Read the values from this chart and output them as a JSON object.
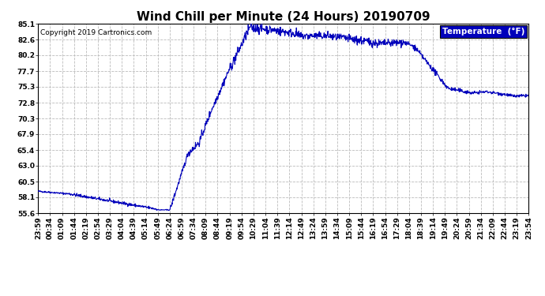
{
  "title": "Wind Chill per Minute (24 Hours) 20190709",
  "copyright": "Copyright 2019 Cartronics.com",
  "legend_label": "Temperature  (°F)",
  "line_color": "#0000BB",
  "background_color": "#ffffff",
  "plot_bg_color": "#ffffff",
  "yticks": [
    55.6,
    58.1,
    60.5,
    63.0,
    65.4,
    67.9,
    70.3,
    72.8,
    75.3,
    77.7,
    80.2,
    82.6,
    85.1
  ],
  "ylim": [
    55.6,
    85.1
  ],
  "grid_color": "#bbbbbb",
  "title_fontsize": 11,
  "tick_fontsize": 6.5,
  "copyright_fontsize": 6.5,
  "legend_fontsize": 7.5,
  "xtick_labels": [
    "23:59",
    "00:34",
    "01:09",
    "01:44",
    "02:19",
    "02:54",
    "03:29",
    "04:04",
    "04:39",
    "05:14",
    "05:49",
    "06:24",
    "06:59",
    "07:34",
    "08:09",
    "08:44",
    "09:19",
    "09:54",
    "10:29",
    "11:04",
    "11:39",
    "12:14",
    "12:49",
    "13:24",
    "13:59",
    "14:34",
    "15:09",
    "15:44",
    "16:19",
    "16:54",
    "17:29",
    "18:04",
    "18:39",
    "19:14",
    "19:49",
    "20:24",
    "20:59",
    "21:34",
    "22:09",
    "22:44",
    "23:19",
    "23:54"
  ]
}
